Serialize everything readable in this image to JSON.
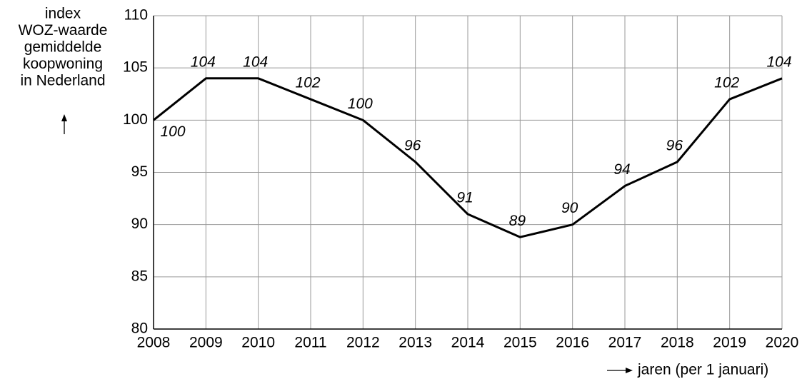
{
  "chart_data": {
    "type": "line",
    "ylabel": [
      "index",
      "WOZ-waarde",
      "gemiddelde",
      "koopwoning",
      "in Nederland"
    ],
    "xlabel": "jaren (per 1 januari)",
    "x": [
      2008,
      2009,
      2010,
      2011,
      2012,
      2013,
      2014,
      2015,
      2016,
      2017,
      2018,
      2019,
      2020
    ],
    "series": [
      {
        "color": "#000000",
        "values": [
          100,
          104,
          104,
          102,
          100,
          96,
          91,
          88.8,
          90,
          93.7,
          96,
          102,
          104
        ],
        "value_labels": [
          "100",
          "104",
          "104",
          "102",
          "100",
          "96",
          "91",
          "89",
          "90",
          "94",
          "96",
          "102",
          "104"
        ]
      }
    ],
    "xlim": [
      2008,
      2020
    ],
    "xticks": [
      2008,
      2009,
      2010,
      2011,
      2012,
      2013,
      2014,
      2015,
      2016,
      2017,
      2018,
      2019,
      2020
    ],
    "ylim": [
      80,
      110
    ],
    "yticks": [
      80,
      85,
      90,
      95,
      100,
      105,
      110
    ],
    "grid": true
  }
}
